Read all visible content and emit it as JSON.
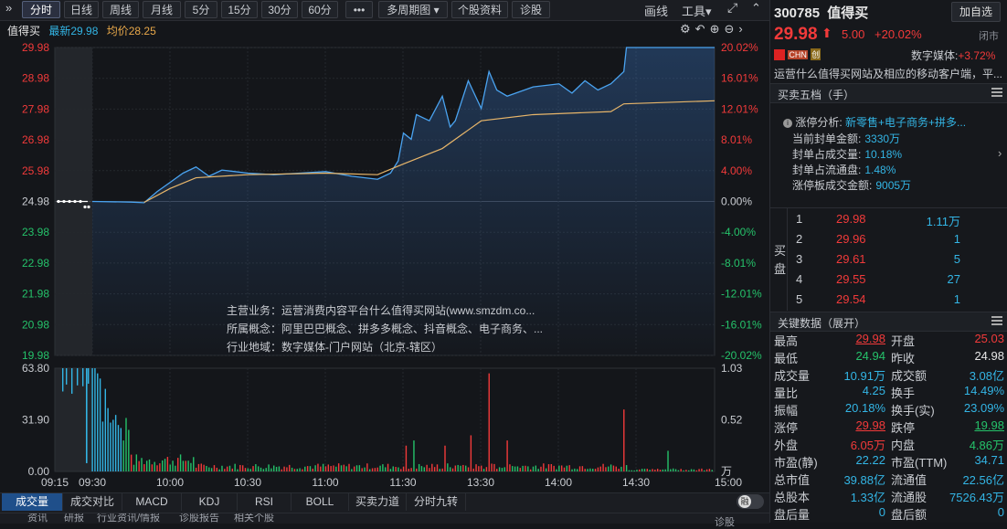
{
  "toolbar": {
    "tabs": [
      "分时",
      "日线",
      "周线",
      "月线",
      "5分",
      "15分",
      "30分",
      "60分",
      "•••",
      "多周期图",
      "个股资料",
      "诊股"
    ],
    "draw": "画线",
    "tools": "工具"
  },
  "chart_header": {
    "name": "值得买",
    "latest_label": "最新29.98",
    "avg_label": "均价28.25"
  },
  "chart_data": {
    "type": "line",
    "y_left_ticks": [
      "29.98",
      "28.98",
      "27.98",
      "26.98",
      "25.98",
      "24.98",
      "23.98",
      "22.98",
      "21.98",
      "20.98",
      "19.98"
    ],
    "y_right_ticks": [
      "20.02%",
      "16.01%",
      "12.01%",
      "8.01%",
      "4.00%",
      "0.00%",
      "-4.00%",
      "-8.01%",
      "-12.01%",
      "-16.01%",
      "-20.02%"
    ],
    "x_ticks": [
      "09:15",
      "09:30",
      "10:00",
      "10:30",
      "11:00",
      "11:30",
      "13:30",
      "14:00",
      "14:30",
      "15:00"
    ],
    "prev_close": 24.98,
    "price_range": [
      19.98,
      29.98
    ],
    "price_series": [
      [
        0,
        24.98
      ],
      [
        15,
        24.96
      ],
      [
        20,
        24.94
      ],
      [
        25,
        25.3
      ],
      [
        30,
        25.6
      ],
      [
        35,
        25.9
      ],
      [
        40,
        26.1
      ],
      [
        45,
        25.8
      ],
      [
        50,
        26.0
      ],
      [
        60,
        25.9
      ],
      [
        70,
        25.85
      ],
      [
        80,
        25.9
      ],
      [
        90,
        25.95
      ],
      [
        100,
        25.8
      ],
      [
        110,
        25.7
      ],
      [
        115,
        25.9
      ],
      [
        118,
        26.3
      ],
      [
        120,
        27.2
      ],
      [
        123,
        27.0
      ],
      [
        125,
        27.8
      ],
      [
        130,
        27.6
      ],
      [
        135,
        28.4
      ],
      [
        138,
        27.4
      ],
      [
        140,
        27.6
      ],
      [
        145,
        28.9
      ],
      [
        150,
        28.0
      ],
      [
        153,
        29.2
      ],
      [
        156,
        28.6
      ],
      [
        160,
        28.4
      ],
      [
        170,
        28.7
      ],
      [
        180,
        28.8
      ],
      [
        185,
        28.5
      ],
      [
        190,
        28.9
      ],
      [
        195,
        28.6
      ],
      [
        200,
        28.8
      ],
      [
        205,
        29.2
      ],
      [
        206,
        29.98
      ],
      [
        240,
        29.98
      ]
    ],
    "avg_series": [
      [
        20,
        24.95
      ],
      [
        30,
        25.4
      ],
      [
        40,
        25.75
      ],
      [
        60,
        25.85
      ],
      [
        90,
        25.9
      ],
      [
        110,
        25.85
      ],
      [
        120,
        26.2
      ],
      [
        135,
        26.7
      ],
      [
        145,
        27.3
      ],
      [
        150,
        27.6
      ],
      [
        170,
        27.8
      ],
      [
        200,
        27.9
      ],
      [
        205,
        28.15
      ],
      [
        240,
        28.25
      ]
    ],
    "volume_ticks_left": [
      "63.80",
      "31.90",
      "0.00"
    ],
    "volume_ticks_right": [
      "1.03",
      "0.52",
      "万"
    ],
    "volume_max": 63.8
  },
  "overlay_info": {
    "business": "主营业务：运营消费内容平台什么值得买网站(www.smzdm.co...",
    "concepts": "所属概念：阿里巴巴概念、拼多多概念、抖音概念、电子商务、...",
    "region": "行业地域：数字媒体-门户网站（北京-辖区）"
  },
  "indicator_tabs": [
    "成交量",
    "成交对比",
    "MACD",
    "KDJ",
    "RSI",
    "BOLL",
    "买卖力道",
    "分时九转"
  ],
  "bottom_tabs": [
    "资讯",
    "研报",
    "行业资讯/情报",
    "诊股报告",
    "相关个股"
  ],
  "bottom_right_btn": "诊股",
  "toggle_label": "融",
  "stock": {
    "code": "300785",
    "name": "值得买",
    "add_btn": "加自选",
    "price": "29.98",
    "change": "5.00",
    "pct": "+20.02%",
    "status": "闭市",
    "tags": [
      "CHN",
      "创"
    ],
    "sector_name": "数字媒体:",
    "sector_pct": "+3.72%",
    "desc": "运营什么值得买网站及相应的移动客户端，平..."
  },
  "orderbook": {
    "title": "买卖五档（手）",
    "limit_title": "涨停分析:",
    "limit_tags": "新零售+电子商务+拼多...",
    "items": [
      {
        "label": "当前封单金额:",
        "value": "3330万"
      },
      {
        "label": "封单占成交量:",
        "value": "10.18%"
      },
      {
        "label": "封单占流通盘:",
        "value": "1.48%"
      },
      {
        "label": "涨停板成交金额:",
        "value": "9005万"
      }
    ],
    "side_label": "买盘",
    "bids": [
      {
        "lvl": "1",
        "price": "29.98",
        "vol": "1.11万"
      },
      {
        "lvl": "2",
        "price": "29.96",
        "vol": "1"
      },
      {
        "lvl": "3",
        "price": "29.61",
        "vol": "5"
      },
      {
        "lvl": "4",
        "price": "29.55",
        "vol": "27"
      },
      {
        "lvl": "5",
        "price": "29.54",
        "vol": "1"
      }
    ]
  },
  "keydata": {
    "title": "关键数据（展开）",
    "rows": [
      [
        {
          "k": "最高",
          "v": "29.98",
          "c": "red u"
        },
        {
          "k": "开盘",
          "v": "25.03",
          "c": "red"
        }
      ],
      [
        {
          "k": "最低",
          "v": "24.94",
          "c": "green"
        },
        {
          "k": "昨收",
          "v": "24.98",
          "c": "white"
        }
      ],
      [
        {
          "k": "成交量",
          "v": "10.91万",
          "c": "cyan"
        },
        {
          "k": "成交额",
          "v": "3.08亿",
          "c": "cyan"
        }
      ],
      [
        {
          "k": "量比",
          "v": "4.25",
          "c": "cyan"
        },
        {
          "k": "换手",
          "v": "14.49%",
          "c": "cyan"
        }
      ],
      [
        {
          "k": "振幅",
          "v": "20.18%",
          "c": "cyan"
        },
        {
          "k": "换手(实)",
          "v": "23.09%",
          "c": "cyan"
        }
      ],
      [
        {
          "k": "涨停",
          "v": "29.98",
          "c": "red u"
        },
        {
          "k": "跌停",
          "v": "19.98",
          "c": "green u"
        }
      ],
      [
        {
          "k": "外盘",
          "v": "6.05万",
          "c": "red"
        },
        {
          "k": "内盘",
          "v": "4.86万",
          "c": "green"
        }
      ],
      [
        {
          "k": "市盈(静)",
          "v": "22.22",
          "c": "cyan"
        },
        {
          "k": "市盈(TTM)",
          "v": "34.71",
          "c": "cyan"
        }
      ],
      [
        {
          "k": "总市值",
          "v": "39.88亿",
          "c": "cyan"
        },
        {
          "k": "流通值",
          "v": "22.56亿",
          "c": "cyan"
        }
      ],
      [
        {
          "k": "总股本",
          "v": "1.33亿",
          "c": "cyan"
        },
        {
          "k": "流通股",
          "v": "7526.43万",
          "c": "cyan"
        }
      ],
      [
        {
          "k": "盘后量",
          "v": "0",
          "c": "cyan"
        },
        {
          "k": "盘后额",
          "v": "0",
          "c": "cyan"
        }
      ]
    ]
  }
}
